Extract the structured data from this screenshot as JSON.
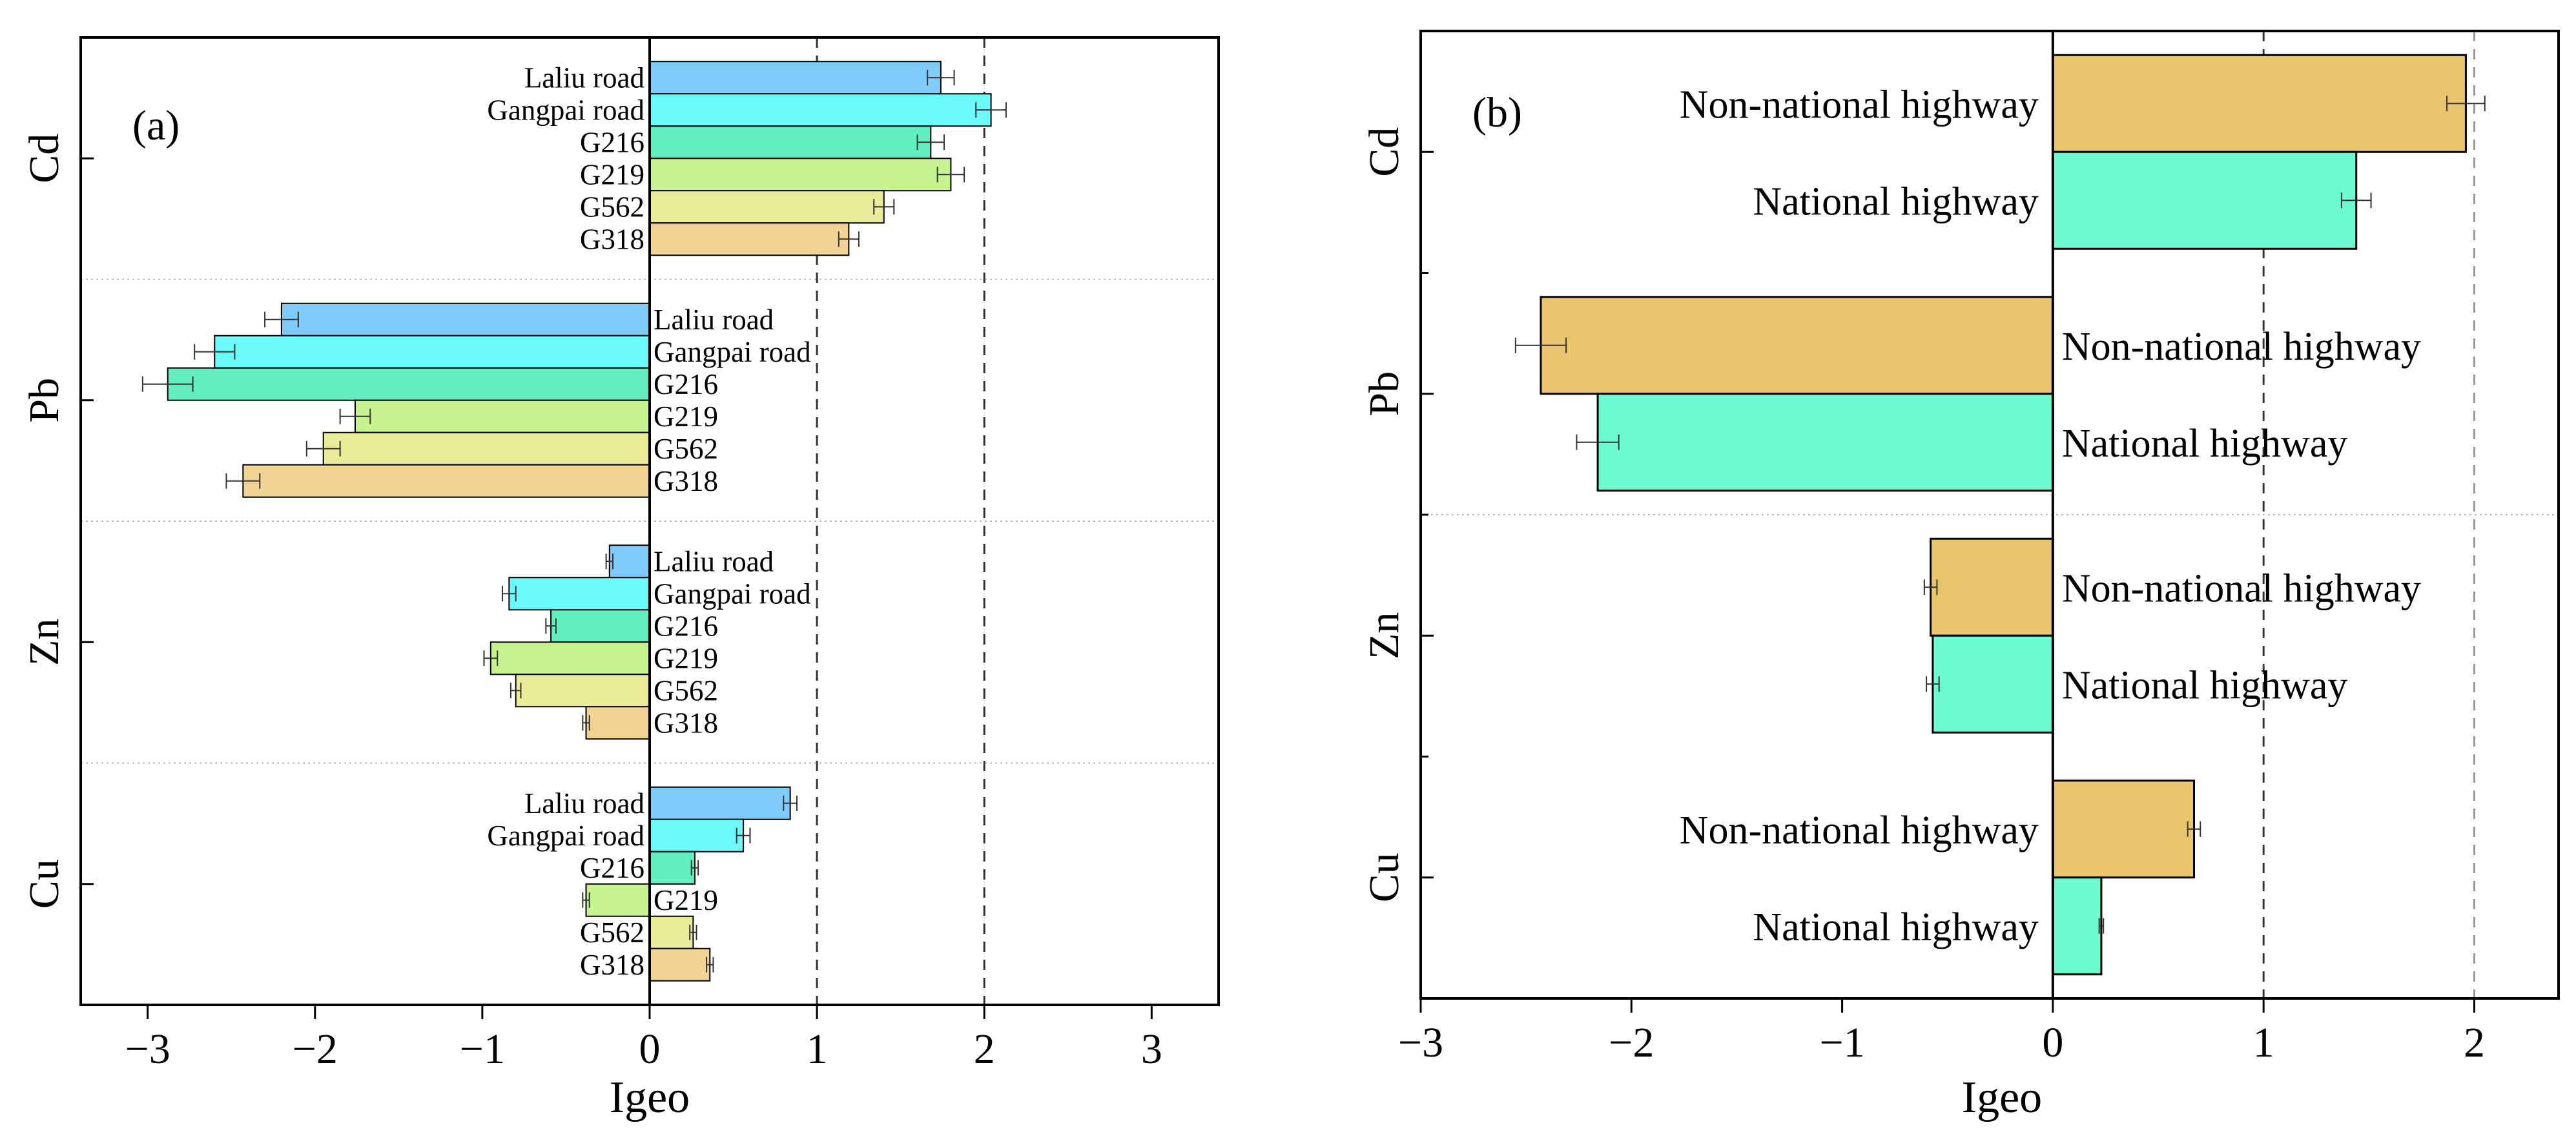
{
  "colors": {
    "panel_a": [
      "#7ecbfa",
      "#6afafa",
      "#62eec0",
      "#c6f290",
      "#eaeb98",
      "#f1d494"
    ],
    "panel_b": {
      "Non-national highway": "#eac56d",
      "National highway": "#6dfbd2"
    }
  },
  "chart_data": [
    {
      "type": "bar",
      "orientation": "horizontal",
      "panel_label": "(a)",
      "xlabel": "Igeo",
      "xlim": [
        -3.4,
        3.4
      ],
      "xticks": [
        -3,
        -2,
        -1,
        0,
        1,
        2,
        3
      ],
      "xtick_labels": [
        "−3",
        "−2",
        "−1",
        "0",
        "1",
        "2",
        "3"
      ],
      "reference_lines": [
        1,
        2
      ],
      "groups": [
        "Cd",
        "Pb",
        "Zn",
        "Cu"
      ],
      "series_names": [
        "Laliu road",
        "Gangpai road",
        "G216",
        "G219",
        "G562",
        "G318"
      ],
      "values": {
        "Cd": [
          1.74,
          2.04,
          1.68,
          1.8,
          1.4,
          1.19
        ],
        "Pb": [
          -2.2,
          -2.6,
          -2.88,
          -1.76,
          -1.95,
          -2.43
        ],
        "Zn": [
          -0.24,
          -0.84,
          -0.59,
          -0.95,
          -0.8,
          -0.38
        ],
        "Cu": [
          0.84,
          0.56,
          0.27,
          -0.38,
          0.26,
          0.36
        ]
      },
      "errors": {
        "Cd": [
          0.08,
          0.09,
          0.08,
          0.08,
          0.06,
          0.06
        ],
        "Pb": [
          0.1,
          0.12,
          0.15,
          0.09,
          0.1,
          0.1
        ],
        "Zn": [
          0.02,
          0.04,
          0.03,
          0.04,
          0.03,
          0.02
        ],
        "Cu": [
          0.04,
          0.04,
          0.02,
          0.02,
          0.02,
          0.02
        ]
      }
    },
    {
      "type": "bar",
      "orientation": "horizontal",
      "panel_label": "(b)",
      "xlabel": "Igeo",
      "xlim": [
        -3,
        2.4
      ],
      "xticks": [
        -3,
        -2,
        -1,
        0,
        1,
        2
      ],
      "xtick_labels": [
        "−3",
        "−2",
        "−1",
        "0",
        "1",
        "2"
      ],
      "reference_lines": [
        1,
        2
      ],
      "groups": [
        "Cd",
        "Pb",
        "Zn",
        "Cu"
      ],
      "series_names": [
        "Non-national highway",
        "National highway"
      ],
      "values": {
        "Cd": [
          1.96,
          1.44
        ],
        "Pb": [
          -2.43,
          -2.16
        ],
        "Zn": [
          -0.58,
          -0.57
        ],
        "Cu": [
          0.67,
          0.23
        ]
      },
      "errors": {
        "Cd": [
          0.09,
          0.07
        ],
        "Pb": [
          0.12,
          0.1
        ],
        "Zn": [
          0.03,
          0.03
        ],
        "Cu": [
          0.03,
          0.01
        ]
      }
    }
  ]
}
